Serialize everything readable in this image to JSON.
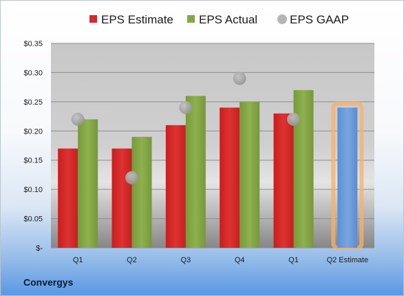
{
  "chart_data": {
    "type": "bar",
    "title": "",
    "xlabel": "",
    "ylabel": "",
    "ylim": [
      0,
      0.35
    ],
    "yticks": [
      0,
      0.05,
      0.1,
      0.15,
      0.2,
      0.25,
      0.3,
      0.35
    ],
    "ytick_labels": [
      "$-",
      "$0.05",
      "$0.10",
      "$0.15",
      "$0.20",
      "$0.25",
      "$0.30",
      "$0.35"
    ],
    "categories": [
      "Q1",
      "Q2",
      "Q3",
      "Q4",
      "Q1",
      "Q2 Estimate"
    ],
    "grid": true,
    "legend_position": "top",
    "series": [
      {
        "name": "EPS Estimate",
        "kind": "bar",
        "color": "#d42a2a",
        "values": [
          0.17,
          0.17,
          0.21,
          0.24,
          0.23,
          null
        ]
      },
      {
        "name": "EPS Actual",
        "kind": "bar",
        "color": "#84a645",
        "values": [
          0.22,
          0.19,
          0.26,
          0.25,
          0.27,
          null
        ]
      },
      {
        "name": "EPS GAAP",
        "kind": "marker",
        "color": "#a6a6a6",
        "values": [
          0.22,
          0.12,
          0.24,
          0.29,
          0.22,
          null
        ]
      },
      {
        "name": "",
        "kind": "bar",
        "color": "#6b9bd8",
        "highlight": "#f5b26b",
        "values": [
          null,
          null,
          null,
          null,
          null,
          0.24
        ]
      }
    ]
  },
  "company_name": "Convergys"
}
